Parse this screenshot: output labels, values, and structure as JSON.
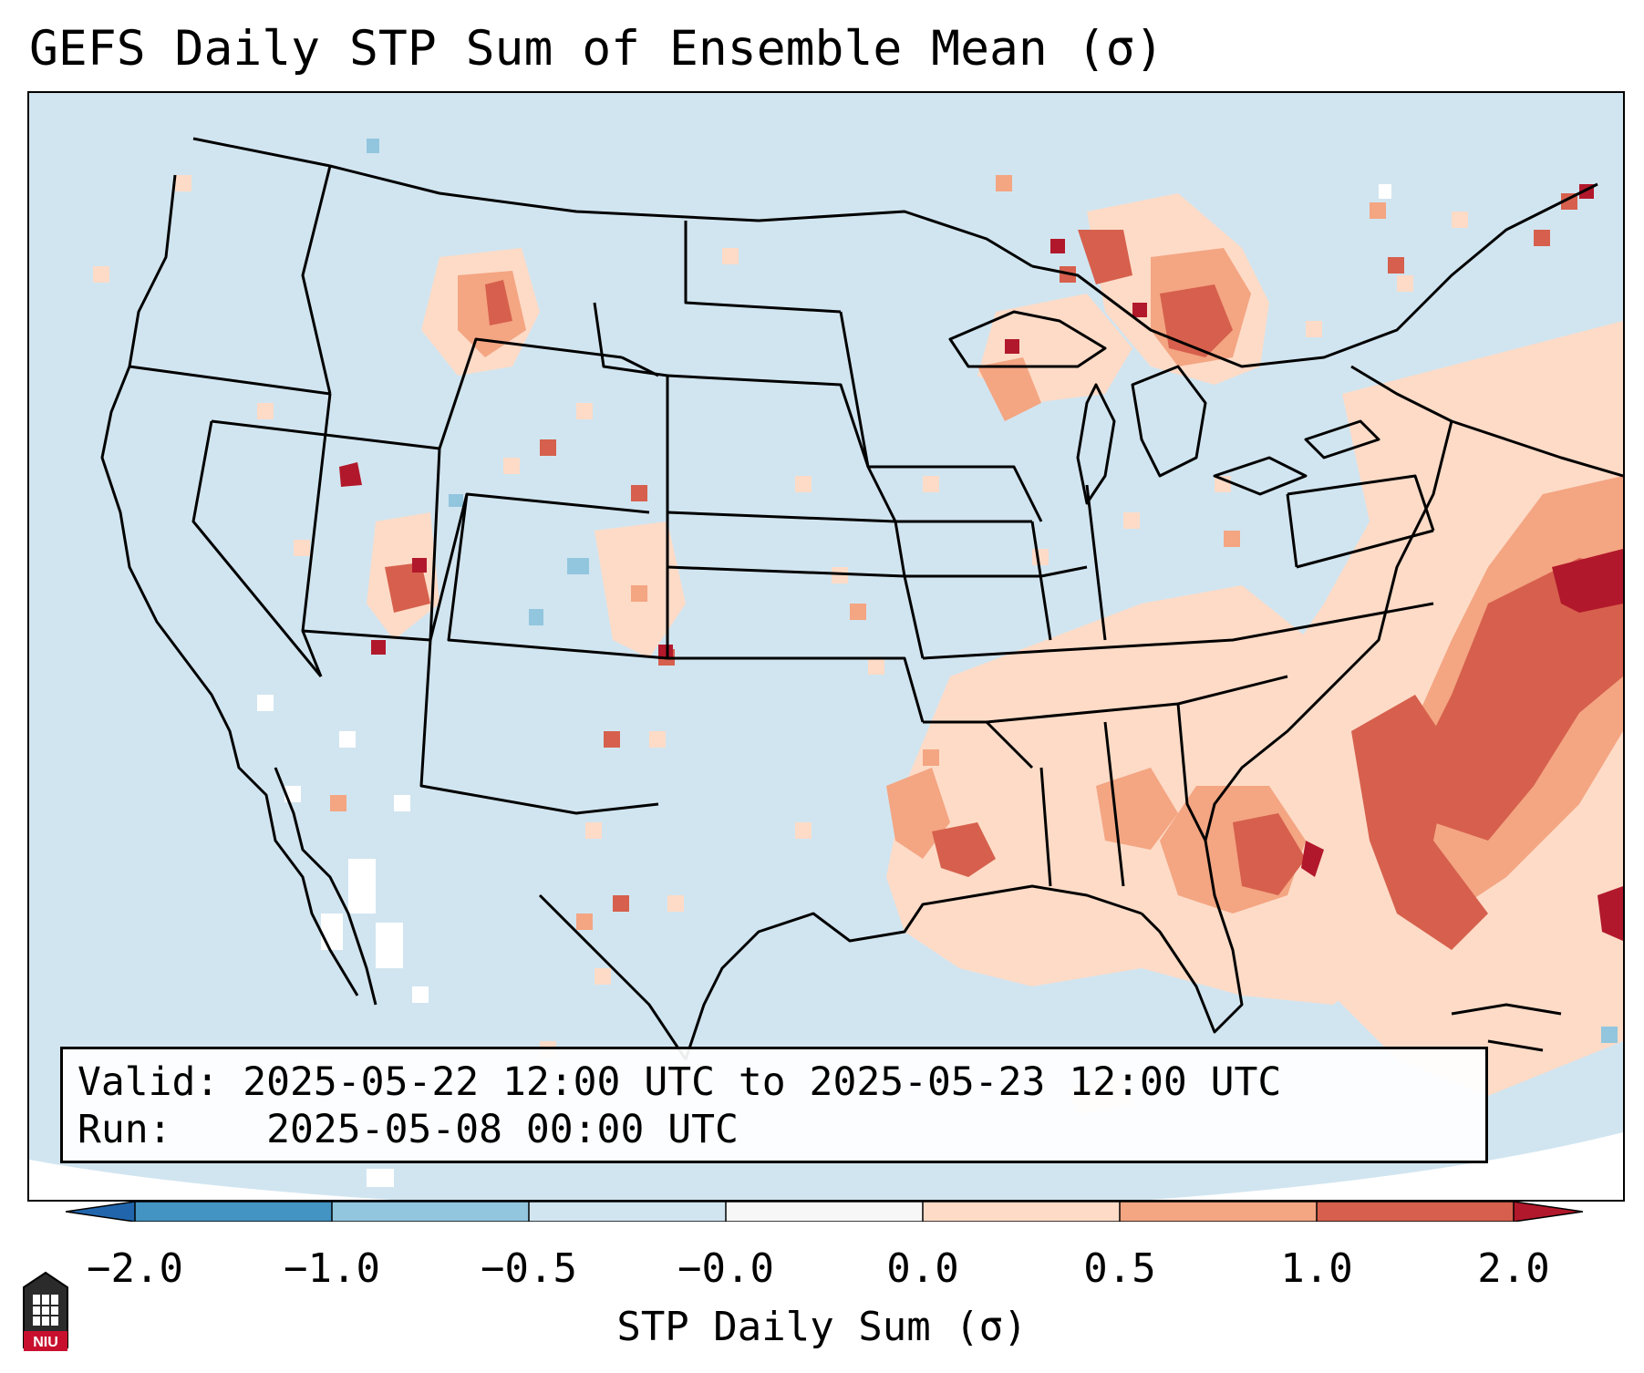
{
  "title": "GEFS Daily STP Sum of Ensemble Mean (σ)",
  "info": {
    "valid_label": "Valid:",
    "valid_value": "2025-05-22 12:00 UTC to 2025-05-23 12:00 UTC",
    "run_label": "Run:",
    "run_value": "2025-05-08 00:00 UTC"
  },
  "colorbar": {
    "label": "STP Daily Sum (σ)",
    "ticks": [
      "−2.0",
      "−1.0",
      "−0.5",
      "−0.0",
      "0.0",
      "0.5",
      "1.0",
      "2.0"
    ],
    "bins": [
      {
        "range": "< -2.0",
        "color": "#2166ac"
      },
      {
        "range": "-2.0 to -1.0",
        "color": "#4393c3"
      },
      {
        "range": "-1.0 to -0.5",
        "color": "#92c5de"
      },
      {
        "range": "-0.5 to -0.0",
        "color": "#d1e5f0"
      },
      {
        "range": "-0.0 to 0.0",
        "color": "#f7f7f7"
      },
      {
        "range": "0.0 to 0.5",
        "color": "#fddbc7"
      },
      {
        "range": "0.5 to 1.0",
        "color": "#f4a582"
      },
      {
        "range": "1.0 to 2.0",
        "color": "#d6604d"
      },
      {
        "range": "> 2.0",
        "color": "#b2182b"
      }
    ]
  },
  "logo": {
    "text": "NIU"
  },
  "icons": [
    "niu-logo-icon"
  ]
}
